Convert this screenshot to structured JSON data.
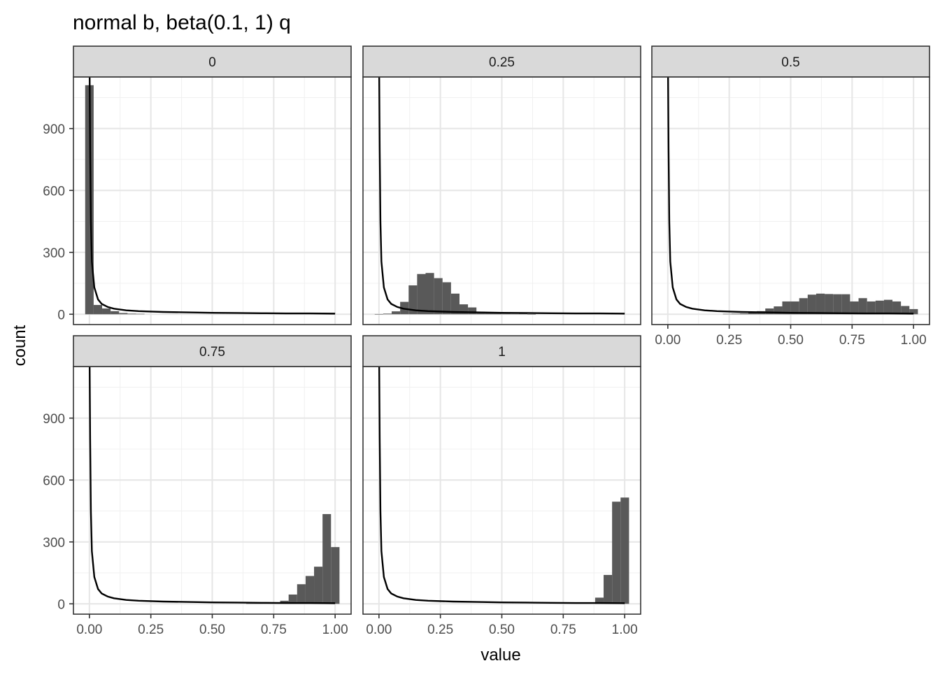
{
  "chart_data": {
    "type": "histogram-facets",
    "title": "normal b, beta(0.1, 1) q",
    "xlabel": "value",
    "ylabel": "count",
    "xlim": [
      -0.065,
      1.065
    ],
    "ylim": [
      -50,
      1150
    ],
    "x_ticks": [
      0,
      0.25,
      0.5,
      0.75,
      1
    ],
    "x_tick_labels": [
      "0.00",
      "0.25",
      "0.50",
      "0.75",
      "1.00"
    ],
    "y_ticks": [
      0,
      300,
      600,
      900
    ],
    "y_tick_labels": [
      "0",
      "300",
      "600",
      "900"
    ],
    "bin_width": 0.0345,
    "grid": true,
    "bar_color": "#595959",
    "curve_color": "#000000",
    "strip_fill": "#d9d9d9",
    "reference_curve": {
      "description": "density curve",
      "x": [
        0.0,
        0.001,
        0.003,
        0.006,
        0.01,
        0.02,
        0.035,
        0.05,
        0.075,
        0.1,
        0.15,
        0.2,
        0.3,
        0.4,
        0.5,
        0.6,
        0.7,
        0.8,
        0.9,
        1.0
      ],
      "y": [
        1150,
        1150,
        800,
        450,
        255,
        130,
        72,
        50,
        35,
        27,
        19,
        15,
        11,
        9,
        7,
        6,
        5,
        4,
        4,
        3
      ]
    },
    "facets": [
      {
        "label": "0",
        "bins": [
          {
            "x": 0.0,
            "count": 1110
          },
          {
            "x": 0.0345,
            "count": 45
          },
          {
            "x": 0.069,
            "count": 28
          },
          {
            "x": 0.1035,
            "count": 15
          },
          {
            "x": 0.138,
            "count": 6
          },
          {
            "x": 0.1725,
            "count": 3
          },
          {
            "x": 0.207,
            "count": 2
          }
        ]
      },
      {
        "label": "0.25",
        "bins": [
          {
            "x": 0.0,
            "count": 1
          },
          {
            "x": 0.0345,
            "count": 3
          },
          {
            "x": 0.069,
            "count": 14
          },
          {
            "x": 0.1035,
            "count": 60
          },
          {
            "x": 0.138,
            "count": 140
          },
          {
            "x": 0.1725,
            "count": 195
          },
          {
            "x": 0.207,
            "count": 200
          },
          {
            "x": 0.2415,
            "count": 175
          },
          {
            "x": 0.276,
            "count": 155
          },
          {
            "x": 0.3105,
            "count": 100
          },
          {
            "x": 0.345,
            "count": 48
          },
          {
            "x": 0.3795,
            "count": 33
          },
          {
            "x": 0.414,
            "count": 12
          },
          {
            "x": 0.4485,
            "count": 9
          },
          {
            "x": 0.483,
            "count": 6
          },
          {
            "x": 0.5175,
            "count": 3
          },
          {
            "x": 0.552,
            "count": 2
          },
          {
            "x": 0.5865,
            "count": 3
          },
          {
            "x": 0.621,
            "count": 1
          }
        ]
      },
      {
        "label": "0.5",
        "bins": [
          {
            "x": 0.2415,
            "count": 2
          },
          {
            "x": 0.276,
            "count": 3
          },
          {
            "x": 0.3105,
            "count": 4
          },
          {
            "x": 0.345,
            "count": 8
          },
          {
            "x": 0.3795,
            "count": 15
          },
          {
            "x": 0.414,
            "count": 28
          },
          {
            "x": 0.4485,
            "count": 38
          },
          {
            "x": 0.483,
            "count": 62
          },
          {
            "x": 0.5175,
            "count": 62
          },
          {
            "x": 0.552,
            "count": 78
          },
          {
            "x": 0.5865,
            "count": 95
          },
          {
            "x": 0.621,
            "count": 100
          },
          {
            "x": 0.6555,
            "count": 98
          },
          {
            "x": 0.69,
            "count": 97
          },
          {
            "x": 0.7245,
            "count": 97
          },
          {
            "x": 0.759,
            "count": 62
          },
          {
            "x": 0.7935,
            "count": 78
          },
          {
            "x": 0.828,
            "count": 62
          },
          {
            "x": 0.8625,
            "count": 66
          },
          {
            "x": 0.897,
            "count": 70
          },
          {
            "x": 0.9315,
            "count": 62
          },
          {
            "x": 0.966,
            "count": 40
          },
          {
            "x": 1.0005,
            "count": 25
          }
        ]
      },
      {
        "label": "0.75",
        "bins": [
          {
            "x": 0.6555,
            "count": 2
          },
          {
            "x": 0.69,
            "count": 3
          },
          {
            "x": 0.7245,
            "count": 4
          },
          {
            "x": 0.759,
            "count": 6
          },
          {
            "x": 0.7935,
            "count": 15
          },
          {
            "x": 0.828,
            "count": 45
          },
          {
            "x": 0.8625,
            "count": 95
          },
          {
            "x": 0.897,
            "count": 135
          },
          {
            "x": 0.9315,
            "count": 180
          },
          {
            "x": 0.966,
            "count": 435
          },
          {
            "x": 1.0005,
            "count": 275
          }
        ]
      },
      {
        "label": "1",
        "bins": [
          {
            "x": 0.897,
            "count": 30
          },
          {
            "x": 0.9315,
            "count": 140
          },
          {
            "x": 0.966,
            "count": 495
          },
          {
            "x": 1.0005,
            "count": 515
          }
        ]
      }
    ]
  }
}
